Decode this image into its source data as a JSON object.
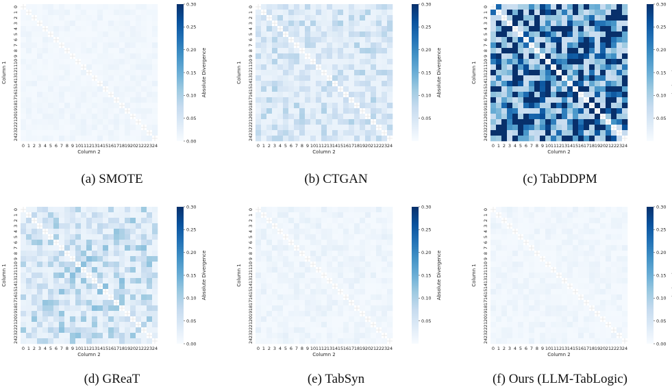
{
  "figure": {
    "captions": [
      "(a) SMOTE",
      "(b) CTGAN",
      "(c) TabDDPM",
      "(d) GReaT",
      "(e) TabSyn",
      "(f) Ours (LLM-TabLogic)"
    ]
  },
  "chart_data": [
    {
      "type": "heatmap",
      "caption": "(a) SMOTE",
      "xlabel": "Column 2",
      "ylabel": "Column 1",
      "colorbar_label": "Absolute Divergence",
      "colorbar_ticks": [
        "0.00",
        "0.05",
        "0.10",
        "0.15",
        "0.20",
        "0.25",
        "0.30"
      ],
      "vmin": 0.0,
      "vmax": 0.3,
      "x_ticks": [
        "0",
        "1",
        "2",
        "3",
        "4",
        "5",
        "6",
        "7",
        "8",
        "9",
        "10",
        "11",
        "12",
        "13",
        "14",
        "15",
        "16",
        "17",
        "18",
        "19",
        "20",
        "21",
        "22",
        "23",
        "24"
      ],
      "y_ticks": [
        "0",
        "1",
        "2",
        "3",
        "4",
        "5",
        "6",
        "7",
        "8",
        "9",
        "10",
        "11",
        "12",
        "13",
        "14",
        "15",
        "16",
        "17",
        "18",
        "19",
        "20",
        "21",
        "22",
        "23",
        "24"
      ],
      "cmap": "Blues",
      "diagonal": "empty",
      "level": 0.012,
      "spread": 0.01,
      "seed": 11
    },
    {
      "type": "heatmap",
      "caption": "(b) CTGAN",
      "xlabel": "Column 2",
      "ylabel": "Column 1",
      "colorbar_label": "Absolute Divergence",
      "colorbar_ticks": [
        "0.05",
        "0.10",
        "0.15",
        "0.20",
        "0.25",
        "0.30"
      ],
      "vmin": 0.0,
      "vmax": 0.3,
      "x_ticks": [
        "0",
        "1",
        "2",
        "3",
        "4",
        "5",
        "6",
        "7",
        "8",
        "9",
        "10",
        "11",
        "12",
        "13",
        "14",
        "15",
        "16",
        "17",
        "18",
        "19",
        "20",
        "21",
        "22",
        "23",
        "24"
      ],
      "y_ticks": [
        "0",
        "1",
        "2",
        "3",
        "4",
        "5",
        "6",
        "7",
        "8",
        "9",
        "10",
        "11",
        "12",
        "13",
        "14",
        "15",
        "16",
        "17",
        "18",
        "19",
        "20",
        "21",
        "22",
        "23",
        "24"
      ],
      "cmap": "Blues",
      "diagonal": "empty",
      "level": 0.045,
      "spread": 0.05,
      "seed": 23
    },
    {
      "type": "heatmap",
      "caption": "(c) TabDDPM",
      "xlabel": "Column 2",
      "ylabel": "Column 1",
      "colorbar_label": "Absolute Divergence",
      "colorbar_ticks": [
        "0.05",
        "0.10",
        "0.15",
        "0.20",
        "0.25",
        "0.30"
      ],
      "vmin": 0.0,
      "vmax": 0.3,
      "x_ticks": [
        "0",
        "1",
        "2",
        "3",
        "4",
        "5",
        "6",
        "7",
        "8",
        "9",
        "10",
        "11",
        "12",
        "13",
        "14",
        "15",
        "16",
        "17",
        "18",
        "19",
        "20",
        "21",
        "22",
        "23",
        "24"
      ],
      "y_ticks": [
        "0",
        "1",
        "2",
        "3",
        "4",
        "5",
        "6",
        "7",
        "8",
        "9",
        "10",
        "11",
        "12",
        "13",
        "14",
        "15",
        "16",
        "17",
        "18",
        "19",
        "20",
        "21",
        "22",
        "23",
        "24"
      ],
      "cmap": "Blues",
      "diagonal": "empty",
      "level": 0.17,
      "spread": 0.26,
      "seed": 37
    },
    {
      "type": "heatmap",
      "caption": "(d) GReaT",
      "xlabel": "Column 2",
      "ylabel": "Column 1",
      "colorbar_label": "Absolute Divergence",
      "colorbar_ticks": [
        "0.00",
        "0.05",
        "0.10",
        "0.15",
        "0.20",
        "0.25",
        "0.30"
      ],
      "vmin": 0.0,
      "vmax": 0.3,
      "x_ticks": [
        "0",
        "1",
        "2",
        "3",
        "4",
        "5",
        "6",
        "7",
        "8",
        "9",
        "10",
        "11",
        "12",
        "13",
        "14",
        "15",
        "16",
        "17",
        "18",
        "19",
        "20",
        "21",
        "22",
        "23",
        "24"
      ],
      "y_ticks": [
        "0",
        "1",
        "2",
        "3",
        "4",
        "5",
        "6",
        "7",
        "8",
        "9",
        "10",
        "11",
        "12",
        "13",
        "14",
        "15",
        "16",
        "17",
        "18",
        "19",
        "20",
        "21",
        "22",
        "23",
        "24"
      ],
      "cmap": "Blues",
      "diagonal": "empty",
      "level": 0.04,
      "spread": 0.07,
      "seed": 53
    },
    {
      "type": "heatmap",
      "caption": "(e) TabSyn",
      "xlabel": "Column 2",
      "ylabel": "Column 1",
      "colorbar_label": "Absolute Divergence",
      "colorbar_ticks": [
        "0.05",
        "0.10",
        "0.15",
        "0.20",
        "0.25",
        "0.30"
      ],
      "vmin": 0.0,
      "vmax": 0.3,
      "x_ticks": [
        "0",
        "1",
        "2",
        "3",
        "4",
        "5",
        "6",
        "7",
        "8",
        "9",
        "10",
        "11",
        "12",
        "13",
        "14",
        "15",
        "16",
        "17",
        "18",
        "19",
        "20",
        "21",
        "22",
        "23",
        "24"
      ],
      "y_ticks": [
        "0",
        "1",
        "2",
        "3",
        "4",
        "5",
        "6",
        "7",
        "8",
        "9",
        "10",
        "11",
        "12",
        "13",
        "14",
        "15",
        "16",
        "17",
        "18",
        "19",
        "20",
        "21",
        "22",
        "23",
        "24"
      ],
      "cmap": "Blues",
      "diagonal": "empty",
      "level": 0.012,
      "spread": 0.015,
      "seed": 71
    },
    {
      "type": "heatmap",
      "caption": "(f) Ours (LLM-TabLogic)",
      "xlabel": "Column 2",
      "ylabel": "Column 1",
      "colorbar_label": "Absolute Divergence",
      "colorbar_ticks": [
        "0.00",
        "0.05",
        "0.10",
        "0.15",
        "0.20",
        "0.25",
        "0.30"
      ],
      "vmin": 0.0,
      "vmax": 0.3,
      "x_ticks": [
        "0",
        "1",
        "2",
        "3",
        "4",
        "5",
        "6",
        "7",
        "8",
        "9",
        "10",
        "11",
        "12",
        "13",
        "14",
        "15",
        "16",
        "17",
        "18",
        "19",
        "20",
        "21",
        "22",
        "23",
        "24"
      ],
      "y_ticks": [
        "0",
        "1",
        "2",
        "3",
        "4",
        "5",
        "6",
        "7",
        "8",
        "9",
        "10",
        "11",
        "12",
        "13",
        "14",
        "15",
        "16",
        "17",
        "18",
        "19",
        "20",
        "21",
        "22",
        "23",
        "24"
      ],
      "cmap": "Blues",
      "diagonal": "empty",
      "level": 0.01,
      "spread": 0.012,
      "seed": 89
    }
  ]
}
